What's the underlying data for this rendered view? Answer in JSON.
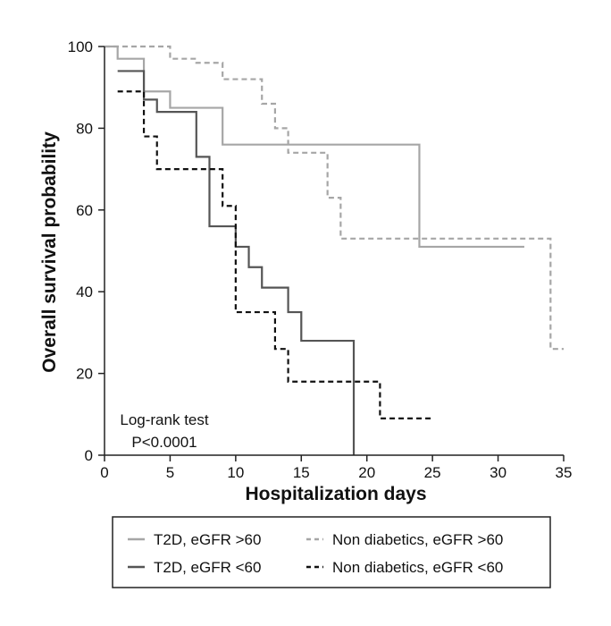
{
  "chart_data": {
    "type": "line",
    "step": true,
    "title": "",
    "xlabel": "Hospitalization days",
    "ylabel": "Overall survival probability",
    "xlim": [
      0,
      35
    ],
    "ylim": [
      0,
      100
    ],
    "xticks": [
      "0",
      "5",
      "10",
      "15",
      "20",
      "25",
      "30",
      "35"
    ],
    "yticks": [
      "0",
      "20",
      "40",
      "60",
      "80",
      "100"
    ],
    "grid": false,
    "legend_position": "bottom",
    "annotation": [
      "Log-rank test",
      "P<0.0001"
    ],
    "series": [
      {
        "name": "T2D, eGFR >60",
        "color": "#a6a6a6",
        "dash": "solid",
        "x": [
          0,
          1,
          3,
          5,
          9,
          24,
          32
        ],
        "y": [
          100,
          97,
          89,
          85,
          76,
          51,
          51
        ]
      },
      {
        "name": "Non diabetics, eGFR >60",
        "color": "#a6a6a6",
        "dash": "dashed",
        "x": [
          0,
          5,
          7,
          9,
          12,
          13,
          14,
          17,
          18,
          34,
          35
        ],
        "y": [
          100,
          97,
          96,
          92,
          86,
          80,
          74,
          63,
          53,
          26,
          26
        ]
      },
      {
        "name": "T2D, eGFR <60",
        "color": "#555555",
        "dash": "solid",
        "x": [
          1,
          3,
          4,
          7,
          8,
          10,
          11,
          12,
          14,
          15,
          19
        ],
        "y": [
          94,
          87,
          84,
          73,
          56,
          51,
          46,
          41,
          35,
          28,
          0
        ]
      },
      {
        "name": "Non diabetics, eGFR <60",
        "color": "#111111",
        "dash": "dashed",
        "x": [
          1,
          3,
          4,
          9,
          10,
          13,
          14,
          21,
          25
        ],
        "y": [
          89,
          78,
          70,
          61,
          35,
          26,
          18,
          9,
          9
        ]
      }
    ]
  }
}
